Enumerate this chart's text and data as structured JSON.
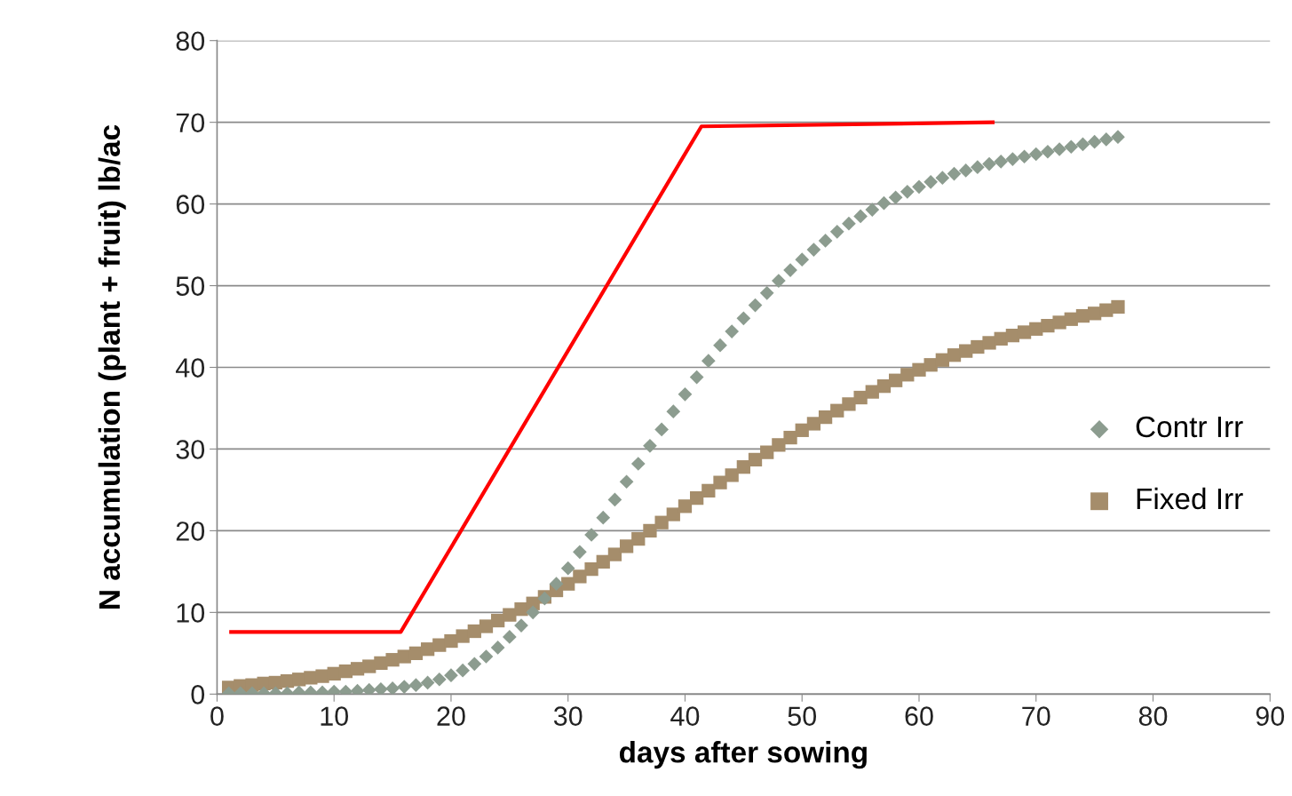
{
  "chart_data": {
    "type": "scatter",
    "xlabel": "days after sowing",
    "ylabel": "N accumulation (plant + fruit) lb/ac",
    "xlim": [
      0,
      90
    ],
    "xticks": [
      0,
      10,
      20,
      30,
      40,
      50,
      60,
      70,
      80,
      90
    ],
    "ylim": [
      0,
      80
    ],
    "yticks": [
      0,
      10,
      20,
      30,
      40,
      50,
      60,
      70,
      80
    ],
    "grid": "y",
    "legend": "right",
    "x": [
      1,
      2,
      3,
      4,
      5,
      6,
      7,
      8,
      9,
      10,
      11,
      12,
      13,
      14,
      15,
      16,
      17,
      18,
      19,
      20,
      21,
      22,
      23,
      24,
      25,
      26,
      27,
      28,
      29,
      30,
      31,
      32,
      33,
      34,
      35,
      36,
      37,
      38,
      39,
      40,
      41,
      42,
      43,
      44,
      45,
      46,
      47,
      48,
      49,
      50,
      51,
      52,
      53,
      54,
      55,
      56,
      57,
      58,
      59,
      60,
      61,
      62,
      63,
      64,
      65,
      66,
      67,
      68,
      69,
      70,
      71,
      72,
      73,
      74,
      75,
      76,
      77
    ],
    "series": [
      {
        "name": "Contr Irr",
        "color": "#8c9c8f",
        "marker": "diamond",
        "values": [
          0.1,
          0.1,
          0.1,
          0.1,
          0.1,
          0.1,
          0.2,
          0.2,
          0.2,
          0.3,
          0.3,
          0.4,
          0.5,
          0.6,
          0.7,
          0.9,
          1.1,
          1.4,
          1.8,
          2.3,
          2.9,
          3.7,
          4.6,
          5.7,
          7.0,
          8.4,
          10.0,
          11.7,
          13.5,
          15.4,
          17.4,
          19.5,
          21.6,
          23.8,
          26.0,
          28.2,
          30.4,
          32.4,
          34.6,
          36.7,
          38.8,
          40.8,
          42.7,
          44.4,
          46.0,
          47.6,
          49.1,
          50.6,
          51.9,
          53.2,
          54.4,
          55.5,
          56.6,
          57.6,
          58.5,
          59.3,
          60.1,
          60.8,
          61.5,
          62.1,
          62.7,
          63.2,
          63.7,
          64.1,
          64.5,
          64.9,
          65.2,
          65.5,
          65.8,
          66.1,
          66.4,
          66.7,
          67.0,
          67.3,
          67.6,
          67.9,
          68.2
        ]
      },
      {
        "name": "Fixed Irr",
        "color": "#a58d6b",
        "marker": "square",
        "values": [
          0.8,
          1.0,
          1.1,
          1.3,
          1.4,
          1.6,
          1.8,
          2.0,
          2.2,
          2.5,
          2.8,
          3.1,
          3.4,
          3.8,
          4.2,
          4.6,
          5.0,
          5.5,
          6.0,
          6.5,
          7.1,
          7.7,
          8.3,
          9.0,
          9.7,
          10.4,
          11.1,
          11.9,
          12.7,
          13.5,
          14.4,
          15.3,
          16.2,
          17.1,
          18.1,
          19.0,
          20.0,
          21.0,
          22.0,
          23.0,
          24.0,
          24.9,
          25.9,
          26.8,
          27.8,
          28.7,
          29.6,
          30.5,
          31.4,
          32.3,
          33.1,
          33.9,
          34.7,
          35.5,
          36.3,
          37.0,
          37.7,
          38.4,
          39.1,
          39.7,
          40.3,
          40.9,
          41.5,
          42.0,
          42.5,
          43.0,
          43.5,
          43.9,
          44.3,
          44.7,
          45.1,
          45.5,
          45.9,
          46.3,
          46.6,
          47.0,
          47.4
        ]
      },
      {
        "type": "line",
        "color": "#ff0000",
        "line_style": "solid",
        "x": [
          1.2,
          15.7,
          41.4,
          66.3
        ],
        "values": [
          7.6,
          7.6,
          69.5,
          70.0
        ]
      }
    ]
  }
}
